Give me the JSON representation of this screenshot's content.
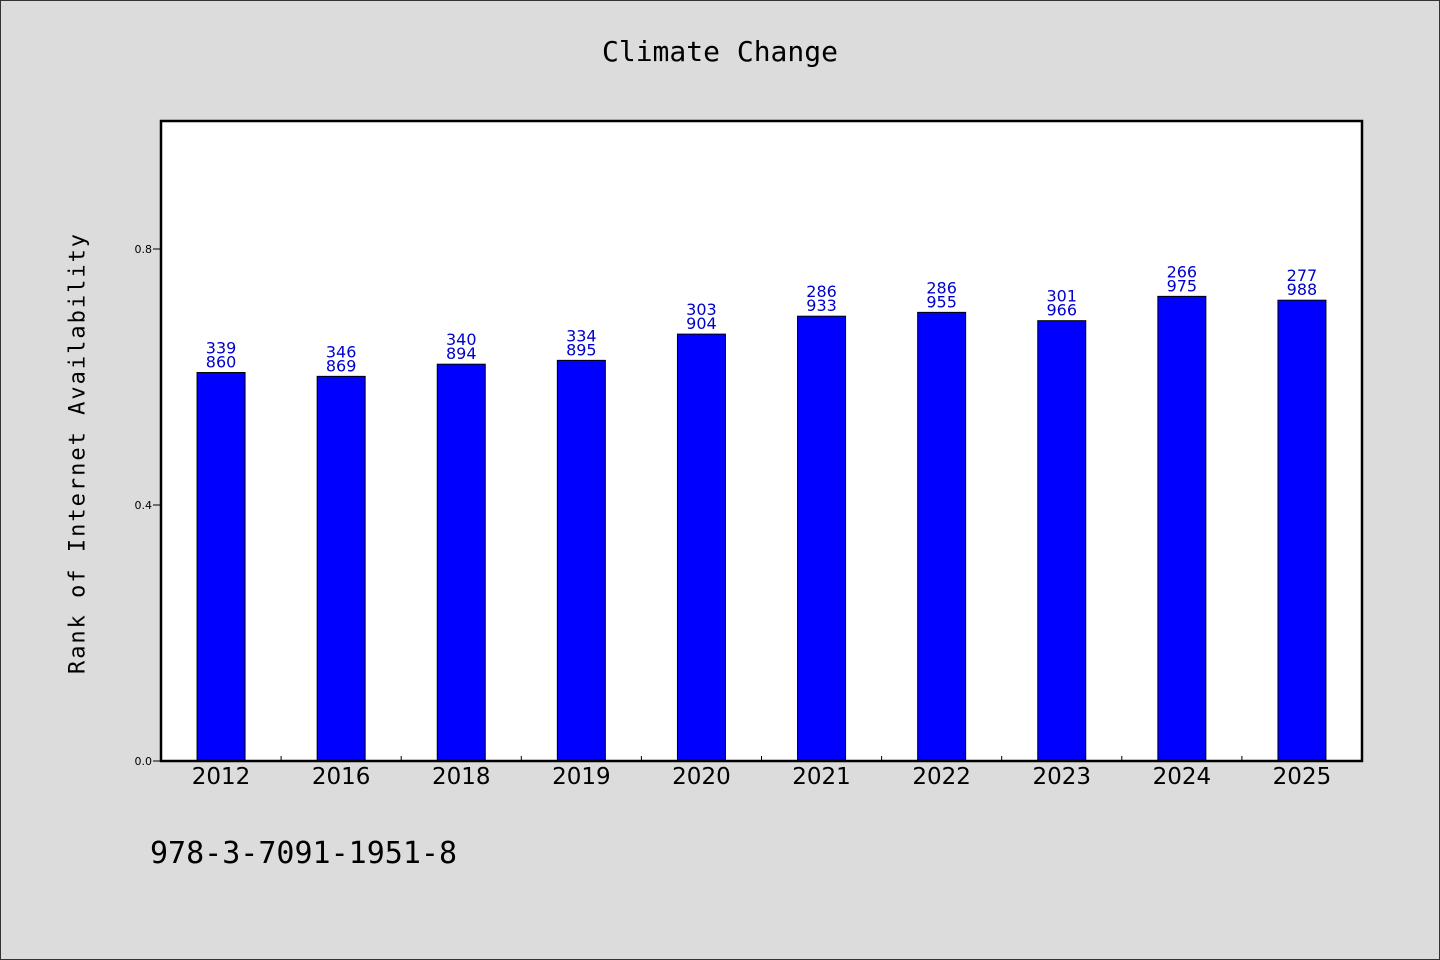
{
  "footer": {
    "code": "978-3-7091-1951-8"
  },
  "chart_data": {
    "type": "bar",
    "title": "Climate Change",
    "xlabel": "",
    "ylabel": "Rank of Internet Availability",
    "categories": [
      "2012",
      "2016",
      "2018",
      "2019",
      "2020",
      "2021",
      "2022",
      "2023",
      "2024",
      "2025"
    ],
    "values": [
      0.607,
      0.601,
      0.62,
      0.626,
      0.667,
      0.695,
      0.701,
      0.688,
      0.726,
      0.72
    ],
    "bar_labels": [
      [
        "339",
        "860"
      ],
      [
        "346",
        "869"
      ],
      [
        "340",
        "894"
      ],
      [
        "334",
        "895"
      ],
      [
        "303",
        "904"
      ],
      [
        "286",
        "933"
      ],
      [
        "286",
        "955"
      ],
      [
        "301",
        "966"
      ],
      [
        "266",
        "975"
      ],
      [
        "277",
        "988"
      ]
    ],
    "ylim": [
      0,
      1.0
    ],
    "yticks": [
      "0.0",
      "0.4",
      "0.8"
    ],
    "ytick_values": [
      0.0,
      0.4,
      0.8
    ],
    "grid": false,
    "legend": "none",
    "colors": {
      "bar": "#0000ff",
      "bar_label": "#0000cc"
    }
  }
}
